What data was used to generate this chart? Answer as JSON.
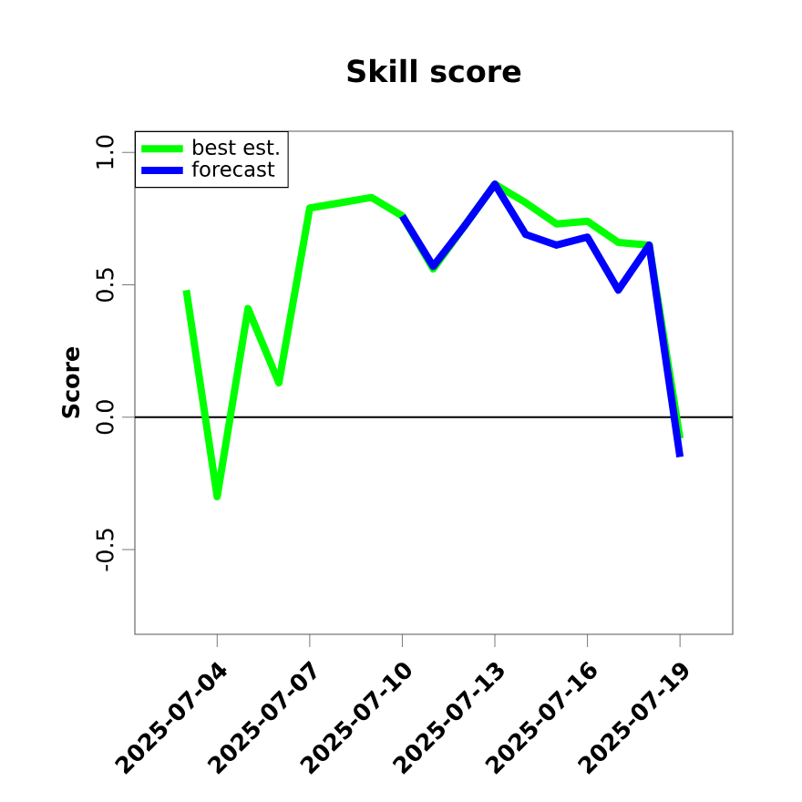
{
  "chart_data": {
    "type": "line",
    "title": "Skill score",
    "ylabel": "Score",
    "x": [
      "2025-07-03",
      "2025-07-04",
      "2025-07-05",
      "2025-07-06",
      "2025-07-07",
      "2025-07-08",
      "2025-07-09",
      "2025-07-10",
      "2025-07-11",
      "2025-07-12",
      "2025-07-13",
      "2025-07-14",
      "2025-07-15",
      "2025-07-16",
      "2025-07-17",
      "2025-07-18",
      "2025-07-19"
    ],
    "series": [
      {
        "name": "best est.",
        "color": "#00ff00",
        "values": [
          0.48,
          -0.3,
          0.41,
          0.13,
          0.79,
          0.81,
          0.83,
          0.76,
          0.56,
          null,
          0.88,
          0.81,
          0.73,
          0.74,
          0.66,
          0.65,
          -0.08
        ]
      },
      {
        "name": "forecast",
        "color": "#0000ff",
        "values": [
          null,
          null,
          null,
          null,
          null,
          null,
          null,
          0.76,
          0.57,
          0.72,
          0.88,
          0.69,
          0.65,
          0.68,
          0.48,
          0.65,
          -0.15
        ]
      }
    ],
    "xlim": [
      "2025-07-01T08:00",
      "2025-07-20T17:00"
    ],
    "xticks": [
      "2025-07-04",
      "2025-07-07",
      "2025-07-10",
      "2025-07-13",
      "2025-07-16",
      "2025-07-19"
    ],
    "ylim": [
      -0.82,
      1.08
    ],
    "yticks": [
      {
        "value": -0.5,
        "label": "-0.5"
      },
      {
        "value": 0,
        "label": "0.0"
      },
      {
        "value": 0.5,
        "label": "0.5"
      },
      {
        "value": 1,
        "label": "1.0"
      }
    ],
    "ref_lines": [
      {
        "axis": "y",
        "value": 0,
        "color": "#000000"
      }
    ],
    "legend": "top left",
    "grid": false,
    "marker": "none",
    "line_style": "solid"
  }
}
